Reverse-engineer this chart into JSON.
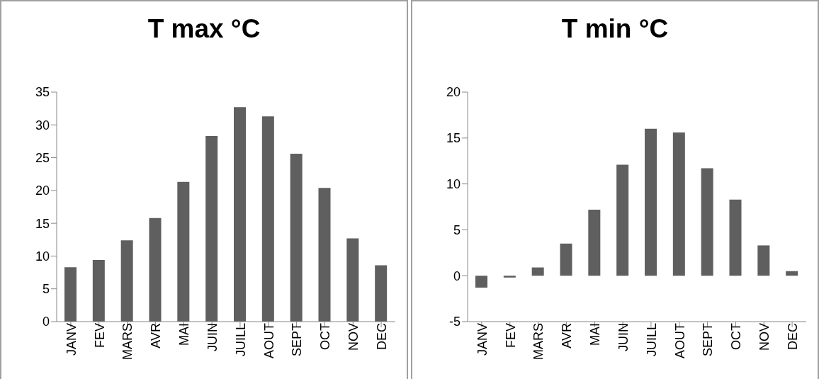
{
  "chart_data": [
    {
      "type": "bar",
      "title": "T max °C",
      "categories": [
        "JANV",
        "FEV",
        "MARS",
        "AVR",
        "MAI",
        "JUIN",
        "JUILL",
        "AOUT",
        "SEPT",
        "OCT",
        "NOV",
        "DEC"
      ],
      "values": [
        8.3,
        9.4,
        12.4,
        15.8,
        21.3,
        28.3,
        32.7,
        31.3,
        25.6,
        20.4,
        12.7,
        8.6
      ],
      "color": "#5f5f5f",
      "ylim": [
        0,
        35
      ],
      "yticks": [
        0,
        5,
        10,
        15,
        20,
        25,
        30,
        35
      ],
      "grid": false,
      "legend": false
    },
    {
      "type": "bar",
      "title": "T min °C",
      "categories": [
        "JANV",
        "FEV",
        "MARS",
        "AVR",
        "MAI",
        "JUIN",
        "JUILL",
        "AOUT",
        "SEPT",
        "OCT",
        "NOV",
        "DEC"
      ],
      "values": [
        -1.3,
        -0.2,
        0.9,
        3.5,
        7.2,
        12.1,
        16.0,
        15.6,
        11.7,
        8.3,
        3.3,
        0.5
      ],
      "color": "#5f5f5f",
      "ylim": [
        -5,
        20
      ],
      "yticks": [
        -5,
        0,
        5,
        10,
        15,
        20
      ],
      "grid": false,
      "legend": false
    }
  ]
}
